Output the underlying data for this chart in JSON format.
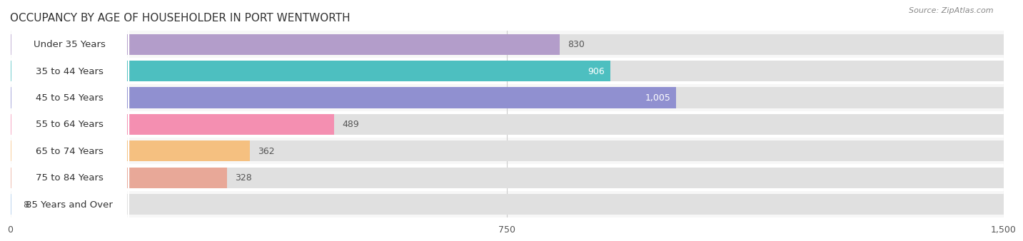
{
  "title": "OCCUPANCY BY AGE OF HOUSEHOLDER IN PORT WENTWORTH",
  "source": "Source: ZipAtlas.com",
  "categories": [
    "Under 35 Years",
    "35 to 44 Years",
    "45 to 54 Years",
    "55 to 64 Years",
    "65 to 74 Years",
    "75 to 84 Years",
    "85 Years and Over"
  ],
  "values": [
    830,
    906,
    1005,
    489,
    362,
    328,
    8
  ],
  "bar_colors": [
    "#b39dca",
    "#4dbfc0",
    "#9090d0",
    "#f48fb1",
    "#f5c080",
    "#e8a898",
    "#a8c8e8"
  ],
  "xlim": [
    0,
    1500
  ],
  "xticks": [
    0,
    750,
    1500
  ],
  "background_color": "#ffffff",
  "bar_bg_color": "#e0e0e0",
  "row_bg_colors": [
    "#f7f7f7",
    "#ffffff"
  ],
  "title_fontsize": 11,
  "label_fontsize": 9.5,
  "value_fontsize": 9
}
